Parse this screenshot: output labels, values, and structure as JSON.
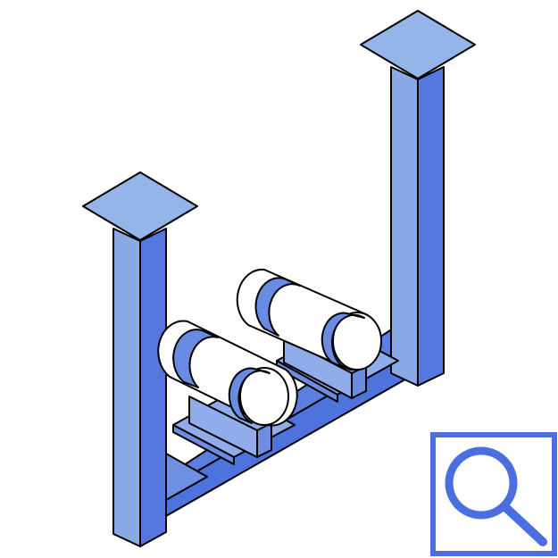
{
  "colors": {
    "cap_top": "#93b5ea",
    "column_front": "#8aaae6",
    "column_side": "#5577de",
    "beam_top": "#5b7fe0",
    "beam_front": "#4e73dc",
    "beam_side": "#6f8fe2",
    "saddle_face": "#90acea",
    "saddle_side": "#6d8ce0",
    "strap": "#6a8be2",
    "pipe": "#ffffff",
    "outline": "#000000",
    "zoom_accent": "#4c6fe0"
  },
  "icons": {
    "zoom": "magnifier-icon"
  }
}
